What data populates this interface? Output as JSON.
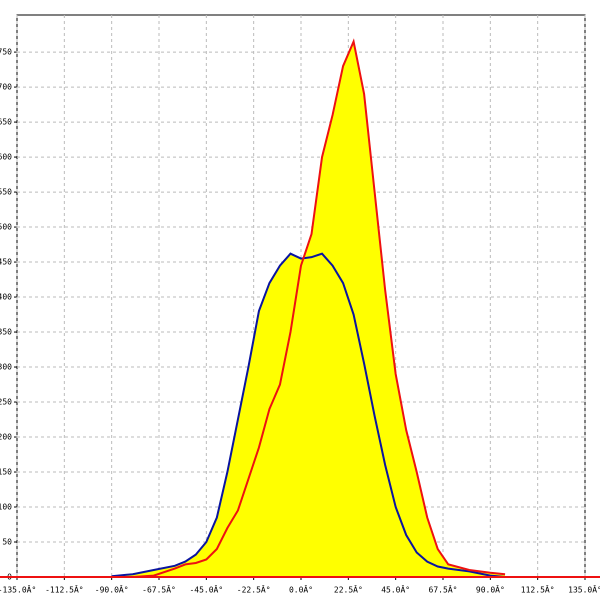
{
  "chart_data": {
    "type": "area",
    "x": [
      -90,
      -80,
      -70,
      -60,
      -55,
      -50,
      -45,
      -40,
      -35,
      -30,
      -25,
      -20,
      -15,
      -10,
      -5,
      0,
      5,
      10,
      15,
      20,
      25,
      30,
      35,
      40,
      45,
      50,
      55,
      60,
      65,
      70,
      80,
      90,
      97
    ],
    "series": [
      {
        "color": "#0a14a0",
        "fill": "#ffff00",
        "values": [
          1,
          4,
          10,
          16,
          22,
          32,
          50,
          85,
          150,
          225,
          300,
          380,
          420,
          445,
          462,
          455,
          457,
          462,
          445,
          420,
          375,
          305,
          230,
          160,
          100,
          60,
          35,
          22,
          15,
          12,
          8,
          2,
          0
        ]
      },
      {
        "color": "#ee1111",
        "fill": "#ffff00",
        "values": [
          0,
          0,
          2,
          12,
          18,
          20,
          25,
          40,
          70,
          95,
          140,
          185,
          240,
          275,
          350,
          445,
          490,
          600,
          660,
          730,
          765,
          690,
          550,
          410,
          290,
          210,
          150,
          85,
          40,
          18,
          10,
          6,
          4
        ]
      }
    ],
    "xlim": [
      -135,
      135
    ],
    "ylim": [
      0,
      803
    ],
    "xticks": [
      {
        "value": -135,
        "label": "-135.0Â°"
      },
      {
        "value": -112.5,
        "label": "-112.5Â°"
      },
      {
        "value": -90,
        "label": "-90.0Â°"
      },
      {
        "value": -67.5,
        "label": "-67.5Â°"
      },
      {
        "value": -45,
        "label": "-45.0Â°"
      },
      {
        "value": -22.5,
        "label": "-22.5Â°"
      },
      {
        "value": 0,
        "label": "0.0Â°"
      },
      {
        "value": 22.5,
        "label": "22.5Â°"
      },
      {
        "value": 45,
        "label": "45.0Â°"
      },
      {
        "value": 67.5,
        "label": "67.5Â°"
      },
      {
        "value": 90,
        "label": "90.0Â°"
      },
      {
        "value": 112.5,
        "label": "112.5Â°"
      },
      {
        "value": 135,
        "label": "135.0Â°"
      }
    ],
    "yticks": [
      0,
      50,
      100,
      150,
      200,
      250,
      300,
      350,
      400,
      450,
      500,
      550,
      600,
      650,
      700,
      750
    ],
    "grid": true,
    "axis_color": "#ee1111"
  }
}
